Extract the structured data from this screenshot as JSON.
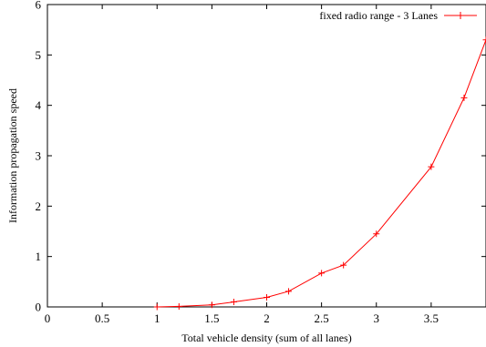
{
  "chart_data": {
    "type": "line",
    "title": "",
    "xlabel": "Total vehicle density (sum of all lanes)",
    "ylabel": "Information propagation speed",
    "xlim": [
      0,
      4
    ],
    "ylim": [
      0,
      6
    ],
    "xticks": [
      0,
      0.5,
      1,
      1.5,
      2,
      2.5,
      3,
      3.5
    ],
    "xtick_labels": [
      "0",
      "0.5",
      "1",
      "1.5",
      "2",
      "2.5",
      "3",
      "3.5"
    ],
    "yticks": [
      0,
      1,
      2,
      3,
      4,
      5,
      6
    ],
    "ytick_labels": [
      "0",
      "1",
      "2",
      "3",
      "4",
      "5",
      "6"
    ],
    "grid": false,
    "legend_position": "top-right",
    "series": [
      {
        "name": "fixed radio range - 3 Lanes",
        "color": "#ff0000",
        "marker": "plus",
        "x": [
          1.0,
          1.2,
          1.5,
          1.7,
          2.0,
          2.2,
          2.5,
          2.7,
          3.0,
          3.5,
          3.8,
          4.0
        ],
        "y": [
          0.0,
          0.01,
          0.04,
          0.1,
          0.19,
          0.31,
          0.67,
          0.83,
          1.45,
          2.78,
          4.15,
          5.3
        ]
      }
    ]
  }
}
